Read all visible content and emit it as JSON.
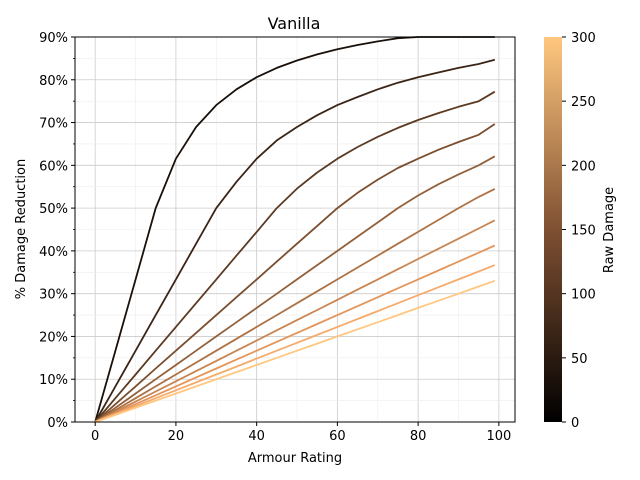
{
  "chart_data": {
    "type": "line",
    "title": "Vanilla",
    "xlabel": "Armour Rating",
    "ylabel": "% Damage Reduction",
    "xlim": [
      -5,
      104
    ],
    "ylim": [
      0,
      0.9
    ],
    "x_ticks": [
      0,
      20,
      40,
      60,
      80,
      100
    ],
    "x_tick_labels": [
      "0",
      "20",
      "40",
      "60",
      "80",
      "100"
    ],
    "y_ticks": [
      0,
      0.1,
      0.2,
      0.3,
      0.4,
      0.5,
      0.6,
      0.7,
      0.8,
      0.9
    ],
    "y_tick_labels": [
      "0%",
      "10%",
      "20%",
      "30%",
      "40%",
      "50%",
      "60%",
      "70%",
      "80%",
      "90%"
    ],
    "grid": true,
    "x": [
      0,
      5,
      10,
      15,
      20,
      25,
      30,
      35,
      40,
      45,
      50,
      55,
      60,
      65,
      70,
      75,
      80,
      85,
      90,
      95,
      99
    ],
    "series": [
      {
        "raw_damage": 30,
        "color": "#1a100a",
        "values": [
          0,
          0.1667,
          0.3333,
          0.5,
          0.6154,
          0.6897,
          0.7407,
          0.7778,
          0.806,
          0.8278,
          0.8451,
          0.8594,
          0.8713,
          0.8813,
          0.8898,
          0.8972,
          0.9,
          0.9,
          0.9,
          0.9,
          0.9
        ]
      },
      {
        "raw_damage": 60,
        "color": "#3a2516",
        "values": [
          0,
          0.0833,
          0.1667,
          0.25,
          0.3333,
          0.4167,
          0.5,
          0.5614,
          0.6154,
          0.6583,
          0.6897,
          0.7172,
          0.7407,
          0.7597,
          0.7778,
          0.7931,
          0.806,
          0.8171,
          0.8278,
          0.8369,
          0.8468
        ]
      },
      {
        "raw_damage": 90,
        "color": "#5a3a23",
        "values": [
          0,
          0.0556,
          0.1111,
          0.1667,
          0.2222,
          0.2778,
          0.3333,
          0.3889,
          0.4444,
          0.5,
          0.5455,
          0.5833,
          0.6154,
          0.6429,
          0.6667,
          0.6875,
          0.7059,
          0.7222,
          0.7368,
          0.75,
          0.7721
        ]
      },
      {
        "raw_damage": 120,
        "color": "#7a4e2f",
        "values": [
          0,
          0.0417,
          0.0833,
          0.125,
          0.1667,
          0.2083,
          0.25,
          0.2917,
          0.3333,
          0.375,
          0.4167,
          0.4583,
          0.5,
          0.5357,
          0.5667,
          0.5938,
          0.6154,
          0.6364,
          0.6545,
          0.6714,
          0.6966
        ]
      },
      {
        "raw_damage": 150,
        "color": "#93603a",
        "values": [
          0,
          0.0333,
          0.0667,
          0.1,
          0.1333,
          0.1667,
          0.2,
          0.2333,
          0.2667,
          0.3,
          0.3333,
          0.3667,
          0.4,
          0.4333,
          0.4667,
          0.5,
          0.5294,
          0.5556,
          0.5789,
          0.6,
          0.6211
        ]
      },
      {
        "raw_damage": 180,
        "color": "#ad7144",
        "values": [
          0,
          0.0278,
          0.0556,
          0.0833,
          0.1111,
          0.1389,
          0.1667,
          0.1944,
          0.2222,
          0.25,
          0.2778,
          0.3056,
          0.3333,
          0.3611,
          0.3889,
          0.4167,
          0.4444,
          0.4722,
          0.5,
          0.5263,
          0.545
        ]
      },
      {
        "raw_damage": 210,
        "color": "#c9844f",
        "values": [
          0,
          0.0238,
          0.0476,
          0.0714,
          0.0952,
          0.119,
          0.1429,
          0.1667,
          0.1905,
          0.2143,
          0.2381,
          0.2619,
          0.2857,
          0.3095,
          0.3333,
          0.3571,
          0.381,
          0.4048,
          0.4286,
          0.4524,
          0.4714
        ]
      },
      {
        "raw_damage": 240,
        "color": "#e3955a",
        "values": [
          0,
          0.0208,
          0.0417,
          0.0625,
          0.0833,
          0.1042,
          0.125,
          0.1458,
          0.1667,
          0.1875,
          0.2083,
          0.2292,
          0.25,
          0.2708,
          0.2917,
          0.3125,
          0.3333,
          0.3542,
          0.375,
          0.3958,
          0.4125
        ]
      },
      {
        "raw_damage": 270,
        "color": "#f6aa6b",
        "values": [
          0,
          0.0185,
          0.037,
          0.0556,
          0.0741,
          0.0926,
          0.1111,
          0.1296,
          0.1481,
          0.1667,
          0.1852,
          0.2037,
          0.2222,
          0.2407,
          0.2593,
          0.2778,
          0.2963,
          0.3148,
          0.3333,
          0.3519,
          0.3667
        ]
      },
      {
        "raw_damage": 300,
        "color": "#ffc780",
        "values": [
          0,
          0.0167,
          0.0333,
          0.05,
          0.0667,
          0.0833,
          0.1,
          0.1167,
          0.1333,
          0.15,
          0.1667,
          0.1833,
          0.2,
          0.2167,
          0.2333,
          0.25,
          0.2667,
          0.2833,
          0.3,
          0.3167,
          0.33
        ]
      }
    ],
    "colorbar": {
      "label": "Raw Damage",
      "range": [
        0,
        300
      ],
      "ticks": [
        0,
        50,
        100,
        150,
        200,
        250,
        300
      ],
      "tick_labels": [
        "0",
        "50",
        "100",
        "150",
        "200",
        "250",
        "300"
      ],
      "colormap": "copper",
      "stops": [
        "#000000",
        "#7f5032",
        "#ffc77f"
      ]
    }
  }
}
